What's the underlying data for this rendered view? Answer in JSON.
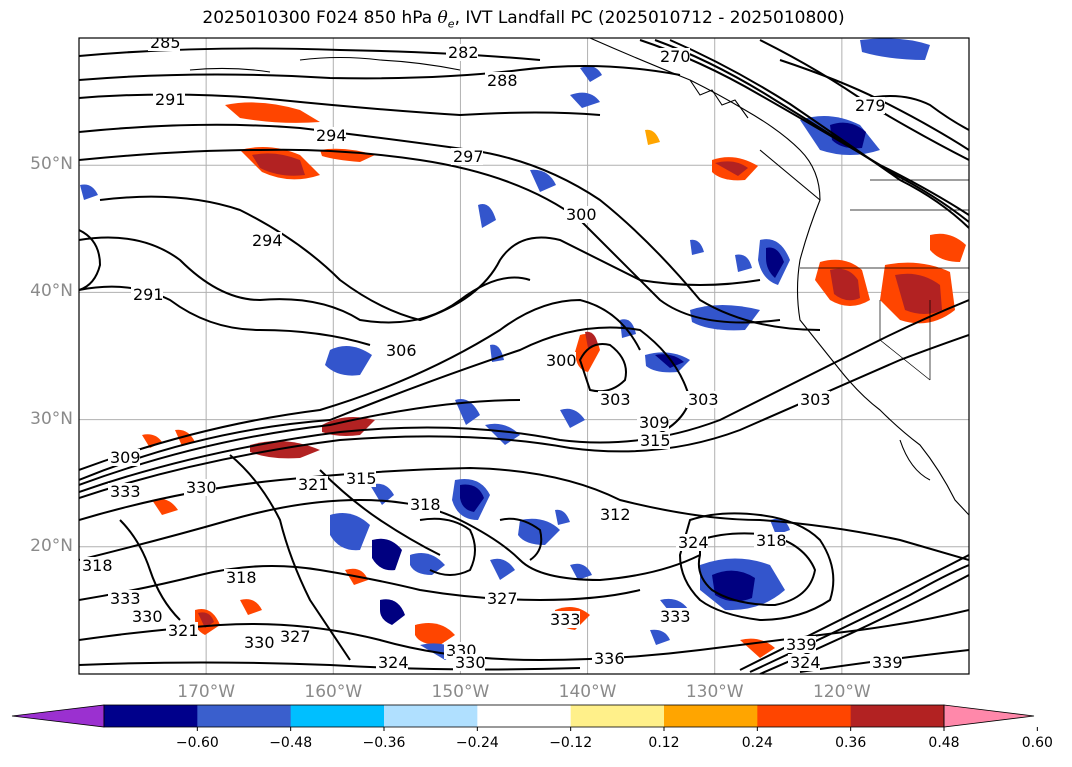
{
  "title": {
    "prefix": "2025010300 F024 850 hPa ",
    "symbol": "θ",
    "subscript": "e",
    "suffix": ", IVT Landfall PC (2025010712 - 2025010800)"
  },
  "map": {
    "lat_labels": [
      {
        "text": "50°N",
        "value": 50
      },
      {
        "text": "40°N",
        "value": 40
      },
      {
        "text": "30°N",
        "value": 30
      },
      {
        "text": "20°N",
        "value": 20
      }
    ],
    "lon_labels": [
      {
        "text": "170°W",
        "value": -170
      },
      {
        "text": "160°W",
        "value": -160
      },
      {
        "text": "150°W",
        "value": -150
      },
      {
        "text": "140°W",
        "value": -140
      },
      {
        "text": "130°W",
        "value": -130
      },
      {
        "text": "120°W",
        "value": -120
      }
    ],
    "extent": {
      "lon": [
        -180,
        -110
      ],
      "lat": [
        10,
        60
      ]
    },
    "contour_labels": [
      "285",
      "282",
      "270",
      "288",
      "291",
      "279",
      "294",
      "297",
      "300",
      "294",
      "291",
      "306",
      "300",
      "303",
      "309",
      "303",
      "303",
      "315",
      "309",
      "333",
      "330",
      "321",
      "315",
      "318",
      "312",
      "333",
      "318",
      "324",
      "318",
      "318",
      "327",
      "333",
      "330",
      "321",
      "330",
      "327",
      "324",
      "330",
      "330",
      "336",
      "333",
      "339",
      "339",
      "324"
    ],
    "grid_color": "#b0b0b0",
    "colors": {
      "deep_blue": "#000080",
      "mid_blue": "#3355cc",
      "light_blue": "#00bfff",
      "dark_red": "#b22222",
      "red_orange": "#ff4500",
      "orange": "#ffa500",
      "yellow": "#fff08a"
    }
  },
  "colorbar": {
    "ticks": [
      "−0.60",
      "−0.48",
      "−0.36",
      "−0.24",
      "−0.12",
      "0.12",
      "0.24",
      "0.36",
      "0.48",
      "0.60"
    ],
    "colors": [
      "#9b30d0",
      "#00008b",
      "#3a5fcd",
      "#00bfff",
      "#b0e0ff",
      "#ffffff",
      "#fff08a",
      "#ffa500",
      "#ff4500",
      "#b22222",
      "#ff88aa"
    ]
  }
}
